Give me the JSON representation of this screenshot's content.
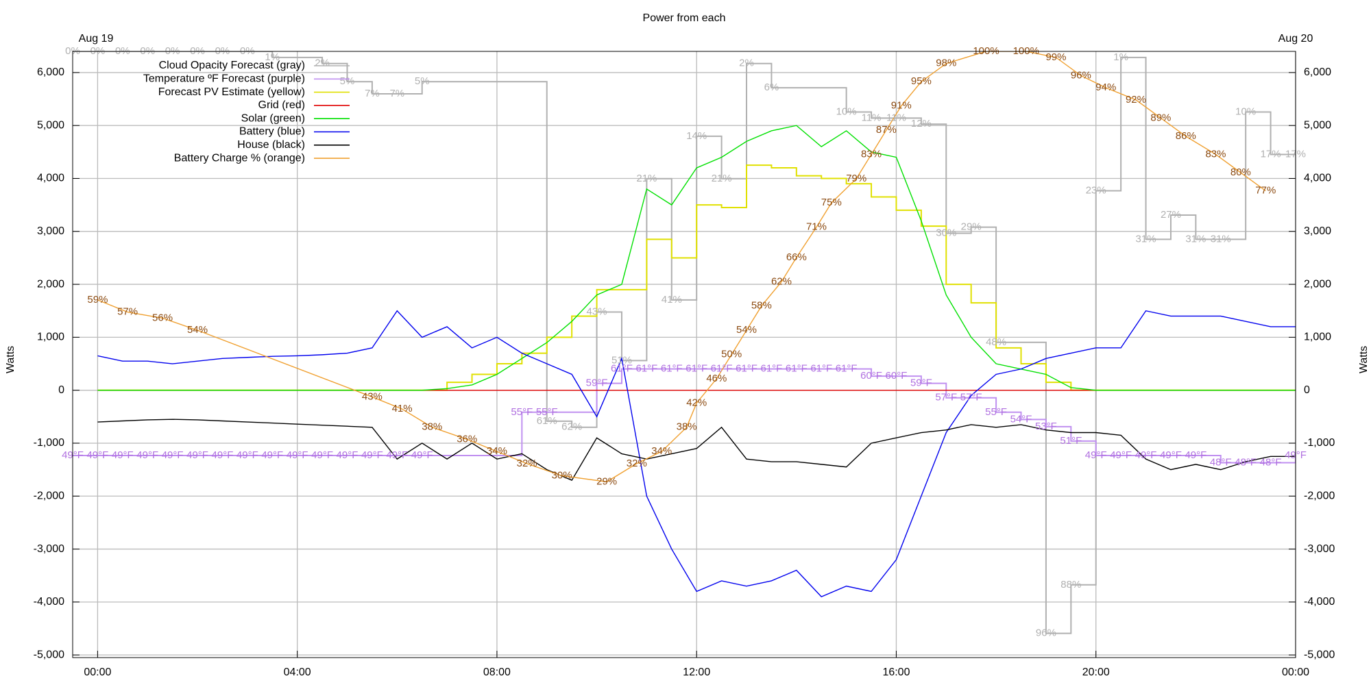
{
  "chart_data": {
    "type": "line",
    "title": "Power from each",
    "ylabel": "Watts",
    "y2label": "Watts",
    "date_labels": [
      "Aug 19",
      "Aug 20"
    ],
    "xlim": [
      -0.5,
      24
    ],
    "xticks": [
      {
        "value": 0,
        "label": "00:00"
      },
      {
        "value": 4,
        "label": "04:00"
      },
      {
        "value": 8,
        "label": "08:00"
      },
      {
        "value": 12,
        "label": "12:00"
      },
      {
        "value": 16,
        "label": "16:00"
      },
      {
        "value": 20,
        "label": "20:00"
      },
      {
        "value": 24,
        "label": "00:00"
      }
    ],
    "ylim": [
      -5050,
      6400
    ],
    "yticks": [
      {
        "value": -5000,
        "label": "-5,000"
      },
      {
        "value": -4000,
        "label": "-4,000"
      },
      {
        "value": -3000,
        "label": "-3,000"
      },
      {
        "value": -2000,
        "label": "-2,000"
      },
      {
        "value": -1000,
        "label": "-1,000"
      },
      0,
      {
        "value": 1000,
        "label": "1,000"
      },
      {
        "value": 2000,
        "label": "2,000"
      },
      {
        "value": 3000,
        "label": "3,000"
      },
      {
        "value": 4000,
        "label": "4,000"
      },
      {
        "value": 5000,
        "label": "5,000"
      },
      {
        "value": 6000,
        "label": "6,000"
      }
    ],
    "grid": true,
    "x": [
      0,
      0.5,
      1,
      1.5,
      2,
      2.5,
      3,
      3.5,
      4,
      4.5,
      5,
      5.5,
      6,
      6.5,
      7,
      7.5,
      8,
      8.5,
      9,
      9.5,
      10,
      10.5,
      11,
      11.5,
      12,
      12.5,
      13,
      13.5,
      14,
      14.5,
      15,
      15.5,
      16,
      16.5,
      17,
      17.5,
      18,
      18.5,
      19,
      19.5,
      20,
      20.5,
      21,
      21.5,
      22,
      22.5,
      23,
      23.5,
      24
    ],
    "series": [
      {
        "name": "Cloud Opacity Forecast (gray)",
        "color": "#b0b0b0",
        "step": true,
        "lim": [
          100,
          0
        ],
        "x": [
          -0.5,
          0,
          0.5,
          1,
          1.5,
          2,
          2.5,
          3,
          3.5,
          4.5,
          5,
          5.5,
          6,
          6.5,
          9,
          9.5,
          10,
          10.5,
          11,
          11.5,
          12,
          12.5,
          13,
          13.5,
          15,
          15.5,
          16,
          16.5,
          17,
          17.5,
          18,
          19,
          19.5,
          20,
          20.5,
          21,
          21.5,
          22,
          22.5,
          23,
          23.5,
          24
        ],
        "values": [
          0,
          0,
          0,
          0,
          0,
          0,
          0,
          0,
          1,
          2,
          5,
          7,
          7,
          5,
          61,
          62,
          43,
          51,
          21,
          41,
          14,
          21,
          2,
          6,
          10,
          11,
          11,
          12,
          30,
          29,
          48,
          96,
          88,
          23,
          1,
          31,
          27,
          31,
          31,
          10,
          17,
          17
        ],
        "value_labels": [
          "0%",
          "0%",
          "0%",
          "0%",
          "0%",
          "0%",
          "0%",
          "0%",
          "1%",
          "2%",
          "5%",
          "7%",
          "7%",
          "5%",
          "61%",
          "62%",
          "43%",
          "51%",
          "21%",
          "41%",
          "14%",
          "21%",
          "2%",
          "6%",
          "10%",
          "11%",
          "11%",
          "12%",
          "30%",
          "29%",
          "48%",
          "96%",
          "88%",
          "23%",
          "1%",
          "31%",
          "27%",
          "31%",
          "31%",
          "10%",
          "17%",
          "17%"
        ]
      },
      {
        "name": "Temperature ºF Forecast (purple)",
        "color": "#c090f0",
        "label_color": "#b070e0",
        "step": true,
        "lim": [
          21,
          105
        ],
        "x": [
          -0.5,
          0,
          0.5,
          1,
          1.5,
          2,
          2.5,
          3,
          3.5,
          4,
          4.5,
          5,
          5.5,
          6,
          6.5,
          8.5,
          9,
          10,
          10.5,
          11,
          11.5,
          12,
          12.5,
          13,
          13.5,
          14,
          14.5,
          15,
          15.5,
          16,
          16.5,
          17,
          17.5,
          18,
          18.5,
          19,
          19.5,
          20,
          20.5,
          21,
          21.5,
          22,
          22.5,
          23,
          23.5,
          24
        ],
        "values": [
          49,
          49,
          49,
          49,
          49,
          49,
          49,
          49,
          49,
          49,
          49,
          49,
          49,
          49,
          49,
          55,
          55,
          59,
          61,
          61,
          61,
          61,
          61,
          61,
          61,
          61,
          61,
          61,
          60,
          60,
          59,
          57,
          57,
          55,
          54,
          53,
          51,
          49,
          49,
          49,
          49,
          49,
          48,
          48,
          48,
          49
        ],
        "value_labels": [
          "49°F",
          "49°F",
          "49°F",
          "49°F",
          "49°F",
          "49°F",
          "49°F",
          "49°F",
          "49°F",
          "49°F",
          "49°F",
          "49°F",
          "49°F",
          "49°F",
          "49°F",
          "55°F",
          "55°F",
          "59°F",
          "61°F",
          "61°F",
          "61°F",
          "61°F",
          "61°F",
          "61°F",
          "61°F",
          "61°F",
          "61°F",
          "61°F",
          "60°F",
          "60°F",
          "59°F",
          "57°F",
          "57°F",
          "55°F",
          "54°F",
          "53°F",
          "51°F",
          "49°F",
          "49°F",
          "49°F",
          "49°F",
          "49°F",
          "48°F",
          "48°F",
          "48°F",
          "49°F"
        ]
      },
      {
        "name": "Forecast PV Estimate (yellow)",
        "color": "#e0e000",
        "step": true,
        "values": [
          0,
          0,
          0,
          0,
          0,
          0,
          0,
          0,
          0,
          0,
          0,
          0,
          0,
          0,
          150,
          300,
          500,
          700,
          1000,
          1400,
          1900,
          1900,
          2850,
          2500,
          3500,
          3450,
          4250,
          4200,
          4050,
          4000,
          3900,
          3650,
          3400,
          3100,
          2000,
          1650,
          800,
          500,
          150,
          0,
          0,
          0,
          0,
          0,
          0,
          0,
          0,
          0,
          0
        ]
      },
      {
        "name": "Grid (red)",
        "color": "#e00000",
        "values": [
          0,
          0,
          0,
          0,
          0,
          0,
          0,
          0,
          0,
          0,
          0,
          0,
          0,
          0,
          0,
          0,
          0,
          0,
          0,
          0,
          0,
          0,
          0,
          0,
          0,
          0,
          0,
          0,
          0,
          0,
          0,
          0,
          0,
          0,
          0,
          0,
          0,
          0,
          0,
          0,
          0,
          0,
          0,
          0,
          0,
          0,
          0,
          0,
          0
        ]
      },
      {
        "name": "Solar (green)",
        "color": "#00e000",
        "values": [
          0,
          0,
          0,
          0,
          0,
          0,
          0,
          0,
          0,
          0,
          0,
          0,
          0,
          0,
          30,
          100,
          300,
          600,
          900,
          1300,
          1800,
          2000,
          3800,
          3500,
          4200,
          4400,
          4700,
          4900,
          5000,
          4600,
          4900,
          4500,
          4400,
          3200,
          1800,
          1000,
          500,
          400,
          300,
          50,
          0,
          0,
          0,
          0,
          0,
          0,
          0,
          0,
          0
        ]
      },
      {
        "name": "Battery (blue)",
        "color": "#0000ee",
        "values": [
          650,
          550,
          550,
          500,
          550,
          600,
          620,
          640,
          650,
          670,
          700,
          800,
          1500,
          1000,
          1200,
          800,
          1000,
          700,
          500,
          300,
          -500,
          600,
          -2000,
          -3000,
          -3800,
          -3600,
          -3700,
          -3600,
          -3400,
          -3900,
          -3700,
          -3800,
          -3200,
          -2000,
          -800,
          -100,
          300,
          400,
          600,
          700,
          800,
          800,
          1500,
          1400,
          1400,
          1400,
          1300,
          1200,
          1200
        ]
      },
      {
        "name": "House (black)",
        "color": "#000000",
        "values": [
          -600,
          -580,
          -560,
          -550,
          -560,
          -580,
          -600,
          -620,
          -640,
          -660,
          -680,
          -700,
          -1300,
          -1000,
          -1300,
          -1000,
          -1300,
          -1200,
          -1500,
          -1700,
          -900,
          -1200,
          -1300,
          -1200,
          -1100,
          -700,
          -1300,
          -1350,
          -1350,
          -1400,
          -1450,
          -1000,
          -900,
          -800,
          -750,
          -650,
          -700,
          -650,
          -750,
          -800,
          -800,
          -850,
          -1300,
          -1500,
          -1400,
          -1500,
          -1350,
          -1250,
          -1250
        ]
      },
      {
        "name": "Battery Charge % (orange)",
        "color": "#f0a030",
        "label_color": "#8b4a10",
        "lim": [
          0,
          100
        ],
        "x": [
          0,
          0.6,
          1.3,
          2,
          5.5,
          6.1,
          6.7,
          7.4,
          8,
          8.6,
          9.3,
          10.2,
          10.8,
          11.3,
          11.8,
          12,
          12.4,
          12.7,
          13,
          13.3,
          13.7,
          14,
          14.4,
          14.7,
          15.2,
          15.5,
          15.8,
          16.1,
          16.5,
          17,
          17.8,
          18.6,
          19.2,
          19.7,
          20.2,
          20.8,
          21.3,
          21.8,
          22.4,
          22.9,
          23.4
        ],
        "values": [
          59,
          57,
          56,
          54,
          43,
          41,
          38,
          36,
          34,
          32,
          30,
          29,
          32,
          34,
          38,
          42,
          46,
          50,
          54,
          58,
          62,
          66,
          71,
          75,
          79,
          83,
          87,
          91,
          95,
          98,
          100,
          100,
          99,
          96,
          94,
          92,
          89,
          86,
          83,
          80,
          77
        ],
        "value_labels": [
          "59%",
          "57%",
          "56%",
          "54%",
          "43%",
          "41%",
          "38%",
          "36%",
          "34%",
          "32%",
          "30%",
          "29%",
          "32%",
          "34%",
          "38%",
          "42%",
          "46%",
          "50%",
          "54%",
          "58%",
          "62%",
          "66%",
          "71%",
          "75%",
          "79%",
          "83%",
          "87%",
          "91%",
          "95%",
          "98%",
          "100%",
          "100%",
          "99%",
          "96%",
          "94%",
          "92%",
          "89%",
          "86%",
          "83%",
          "80%",
          "77%"
        ]
      }
    ]
  }
}
